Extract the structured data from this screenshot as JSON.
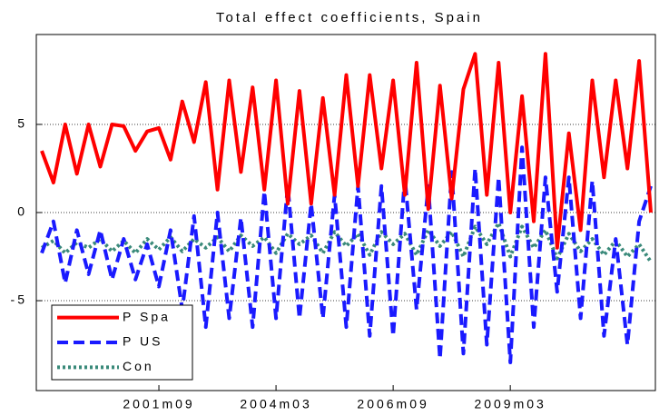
{
  "chart_data": {
    "type": "line",
    "title": "Total effect coefficients, Spain",
    "categories": [
      null,
      null,
      null,
      null,
      null,
      null,
      null,
      null,
      null,
      null,
      "2001m09",
      null,
      null,
      null,
      null,
      null,
      null,
      null,
      null,
      null,
      "2004m03",
      null,
      null,
      null,
      null,
      null,
      null,
      null,
      null,
      null,
      "2006m09",
      null,
      null,
      null,
      null,
      null,
      null,
      null,
      null,
      null,
      "2009m03",
      null,
      null,
      null,
      null,
      null,
      null,
      null,
      null,
      null,
      null,
      null,
      null
    ],
    "series": [
      {
        "name": "P Spa",
        "color": "#ff0000",
        "style": "solid",
        "values": [
          3.5,
          1.7,
          5.0,
          2.2,
          5.0,
          2.6,
          5.0,
          4.9,
          3.5,
          4.6,
          4.8,
          3.0,
          6.3,
          4.0,
          7.4,
          1.3,
          7.5,
          2.3,
          7.1,
          1.3,
          7.5,
          0.5,
          6.9,
          0.5,
          6.5,
          1.0,
          7.8,
          1.5,
          7.8,
          2.5,
          7.5,
          1.0,
          8.5,
          0.2,
          7.2,
          0.8,
          7.0,
          9.0,
          1.0,
          8.5,
          0.0,
          6.6,
          -0.5,
          9.0,
          -2.0,
          4.5,
          -1.0,
          7.5,
          2.0,
          7.5,
          2.5,
          8.6,
          0.0
        ]
      },
      {
        "name": "P US",
        "color": "#1a1aff",
        "style": "dashed",
        "values": [
          -2.3,
          -0.5,
          -4.0,
          -1.0,
          -3.5,
          -1.0,
          -3.8,
          -1.5,
          -3.8,
          -1.8,
          -4.2,
          -1.0,
          -5.5,
          -0.2,
          -6.5,
          0.0,
          -6.0,
          -0.3,
          -6.5,
          1.2,
          -6.0,
          1.5,
          -6.0,
          0.5,
          -6.0,
          1.0,
          -6.5,
          1.5,
          -7.0,
          1.5,
          -7.0,
          2.0,
          -5.5,
          1.5,
          -8.3,
          2.3,
          -8.0,
          2.5,
          -7.5,
          2.0,
          -8.5,
          3.7,
          -6.5,
          2.0,
          -4.5,
          2.0,
          -6.0,
          1.8,
          -7.0,
          -1.5,
          -7.5,
          -0.5,
          1.5
        ]
      },
      {
        "name": "Con",
        "color": "#3a8a7a",
        "style": "dotted",
        "values": [
          -2.0,
          -1.6,
          -2.3,
          -1.7,
          -2.0,
          -1.5,
          -2.2,
          -1.6,
          -2.3,
          -1.5,
          -2.1,
          -1.4,
          -2.2,
          -1.5,
          -2.0,
          -1.4,
          -2.2,
          -1.3,
          -1.9,
          -1.4,
          -2.3,
          -1.2,
          -1.8,
          -1.3,
          -2.3,
          -1.1,
          -1.9,
          -1.2,
          -2.4,
          -1.1,
          -1.8,
          -1.2,
          -2.4,
          -1.0,
          -1.9,
          -1.1,
          -2.5,
          -0.8,
          -1.8,
          -0.6,
          -2.5,
          -0.8,
          -2.0,
          -1.0,
          -2.6,
          -1.2,
          -2.2,
          -1.5,
          -2.4,
          -1.6,
          -2.5,
          -1.8,
          -2.8
        ]
      }
    ],
    "ylim": [
      -10.1,
      10.1
    ],
    "yticks": [
      -5,
      0,
      5
    ],
    "grid": true,
    "legend": "lower left"
  }
}
